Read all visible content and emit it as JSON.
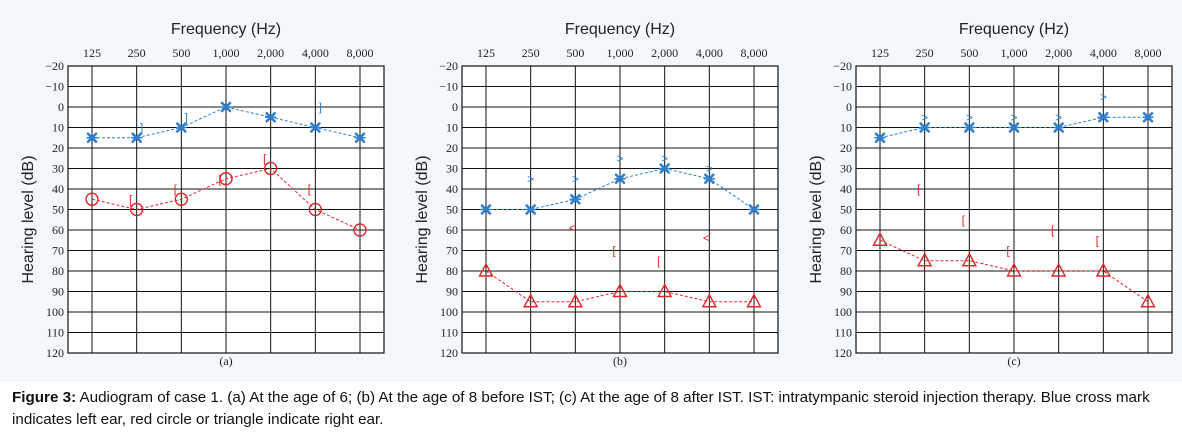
{
  "caption": {
    "label": "Figure 3:",
    "text": "Audiogram of case 1. (a) At the age of 6; (b) At the age of 8 before IST; (c) At the age of 8 after IST. IST: intratympanic steroid injection therapy. Blue cross mark indicates left ear, red circle or triangle indicate right ear."
  },
  "colors": {
    "left_ear": "#2f7fd0",
    "right_ear": "#e0282a",
    "grid": "#111111"
  },
  "chart_data": [
    {
      "type": "line",
      "panel_label": "(a)",
      "title": "Frequency (Hz)",
      "xlabel": "Frequency (Hz)",
      "ylabel": "Hearing level (dB)",
      "categories": [
        "125",
        "250",
        "500",
        "1,000",
        "2,000",
        "4,000",
        "8,000"
      ],
      "y_ticks": [
        "−20",
        "−10",
        "0",
        "10",
        "20",
        "30",
        "40",
        "50",
        "60",
        "70",
        "80",
        "90",
        "100",
        "110",
        "120"
      ],
      "ylim": [
        -20,
        120
      ],
      "series": [
        {
          "name": "Left ear (air)",
          "marker": "cross",
          "color": "#2f7fd0",
          "values": [
            15,
            15,
            10,
            0,
            5,
            10,
            15
          ]
        },
        {
          "name": "Right ear (air)",
          "marker": "circle",
          "color": "#e0282a",
          "values": [
            45,
            50,
            45,
            35,
            30,
            50,
            60
          ]
        }
      ],
      "bone_markers": [
        {
          "name": "Left ear (bone)",
          "symbol": "]",
          "color": "#2f7fd0",
          "points": [
            {
              "freq": "250",
              "value": 10
            },
            {
              "freq": "500",
              "value": 5
            },
            {
              "freq": "4,000",
              "value": 0
            }
          ]
        },
        {
          "name": "Right ear (bone)",
          "symbol": "[",
          "color": "#e0282a",
          "points": [
            {
              "freq": "250",
              "value": 45
            },
            {
              "freq": "500",
              "value": 40
            },
            {
              "freq": "1,000",
              "value": 35
            },
            {
              "freq": "2,000",
              "value": 25
            },
            {
              "freq": "4,000",
              "value": 40
            }
          ]
        }
      ]
    },
    {
      "type": "line",
      "panel_label": "(b)",
      "title": "Frequency (Hz)",
      "xlabel": "Frequency (Hz)",
      "ylabel": "Hearing level (dB)",
      "categories": [
        "125",
        "250",
        "500",
        "1,000",
        "2,000",
        "4,000",
        "8,000"
      ],
      "y_ticks": [
        "−20",
        "−10",
        "0",
        "10",
        "20",
        "30",
        "40",
        "50",
        "60",
        "70",
        "80",
        "90",
        "100",
        "110",
        "120"
      ],
      "ylim": [
        -20,
        120
      ],
      "series": [
        {
          "name": "Left ear (air)",
          "marker": "cross",
          "color": "#2f7fd0",
          "values": [
            50,
            50,
            45,
            35,
            30,
            35,
            50
          ]
        },
        {
          "name": "Right ear (air)",
          "marker": "triangle",
          "color": "#e0282a",
          "values": [
            80,
            95,
            95,
            90,
            90,
            95,
            95
          ]
        }
      ],
      "bone_markers": [
        {
          "name": "Left ear (bone)",
          "symbol": ">",
          "color": "#2f7fd0",
          "points": [
            {
              "freq": "250",
              "value": 35
            },
            {
              "freq": "500",
              "value": 35
            },
            {
              "freq": "1,000",
              "value": 25
            },
            {
              "freq": "2,000",
              "value": 25
            },
            {
              "freq": "4,000",
              "value": 30
            }
          ]
        },
        {
          "name": "Right ear (bone)",
          "symbol": "<",
          "color": "#e0282a",
          "points": [
            {
              "freq": "500",
              "value": 59
            },
            {
              "freq": "4,000",
              "value": 64
            }
          ]
        },
        {
          "name": "Right ear (masked bone)",
          "symbol": "[",
          "color": "#e0282a",
          "points": [
            {
              "freq": "1,000",
              "value": 70
            },
            {
              "freq": "2,000",
              "value": 75
            }
          ]
        }
      ]
    },
    {
      "type": "line",
      "panel_label": "(c)",
      "title": "Frequency (Hz)",
      "xlabel": "Frequency (Hz)",
      "ylabel": "Hearing level (dB)",
      "categories": [
        "125",
        "250",
        "500",
        "1,000",
        "2,000",
        "4,000",
        "8,000"
      ],
      "y_ticks": [
        "−20",
        "−10",
        "0",
        "10",
        "20",
        "30",
        "40",
        "50",
        "60",
        "70",
        "80",
        "90",
        "100",
        "110",
        "120"
      ],
      "ylim": [
        -20,
        120
      ],
      "series": [
        {
          "name": "Left ear (air)",
          "marker": "cross",
          "color": "#2f7fd0",
          "values": [
            15,
            10,
            10,
            10,
            10,
            5,
            5
          ]
        },
        {
          "name": "Right ear (air)",
          "marker": "triangle",
          "color": "#e0282a",
          "values": [
            65,
            75,
            75,
            80,
            80,
            80,
            95
          ]
        }
      ],
      "bone_markers": [
        {
          "name": "Left ear (bone)",
          "symbol": ">",
          "color": "#2f7fd0",
          "points": [
            {
              "freq": "250",
              "value": 5
            },
            {
              "freq": "500",
              "value": 5
            },
            {
              "freq": "1,000",
              "value": 5
            },
            {
              "freq": "2,000",
              "value": 5
            },
            {
              "freq": "4,000",
              "value": -5
            }
          ]
        },
        {
          "name": "Right ear (masked bone)",
          "symbol": "[",
          "color": "#e0282a",
          "points": [
            {
              "freq": "250",
              "value": 40
            },
            {
              "freq": "500",
              "value": 55
            },
            {
              "freq": "1,000",
              "value": 70
            },
            {
              "freq": "2,000",
              "value": 60
            },
            {
              "freq": "4,000",
              "value": 65
            }
          ]
        }
      ]
    }
  ]
}
